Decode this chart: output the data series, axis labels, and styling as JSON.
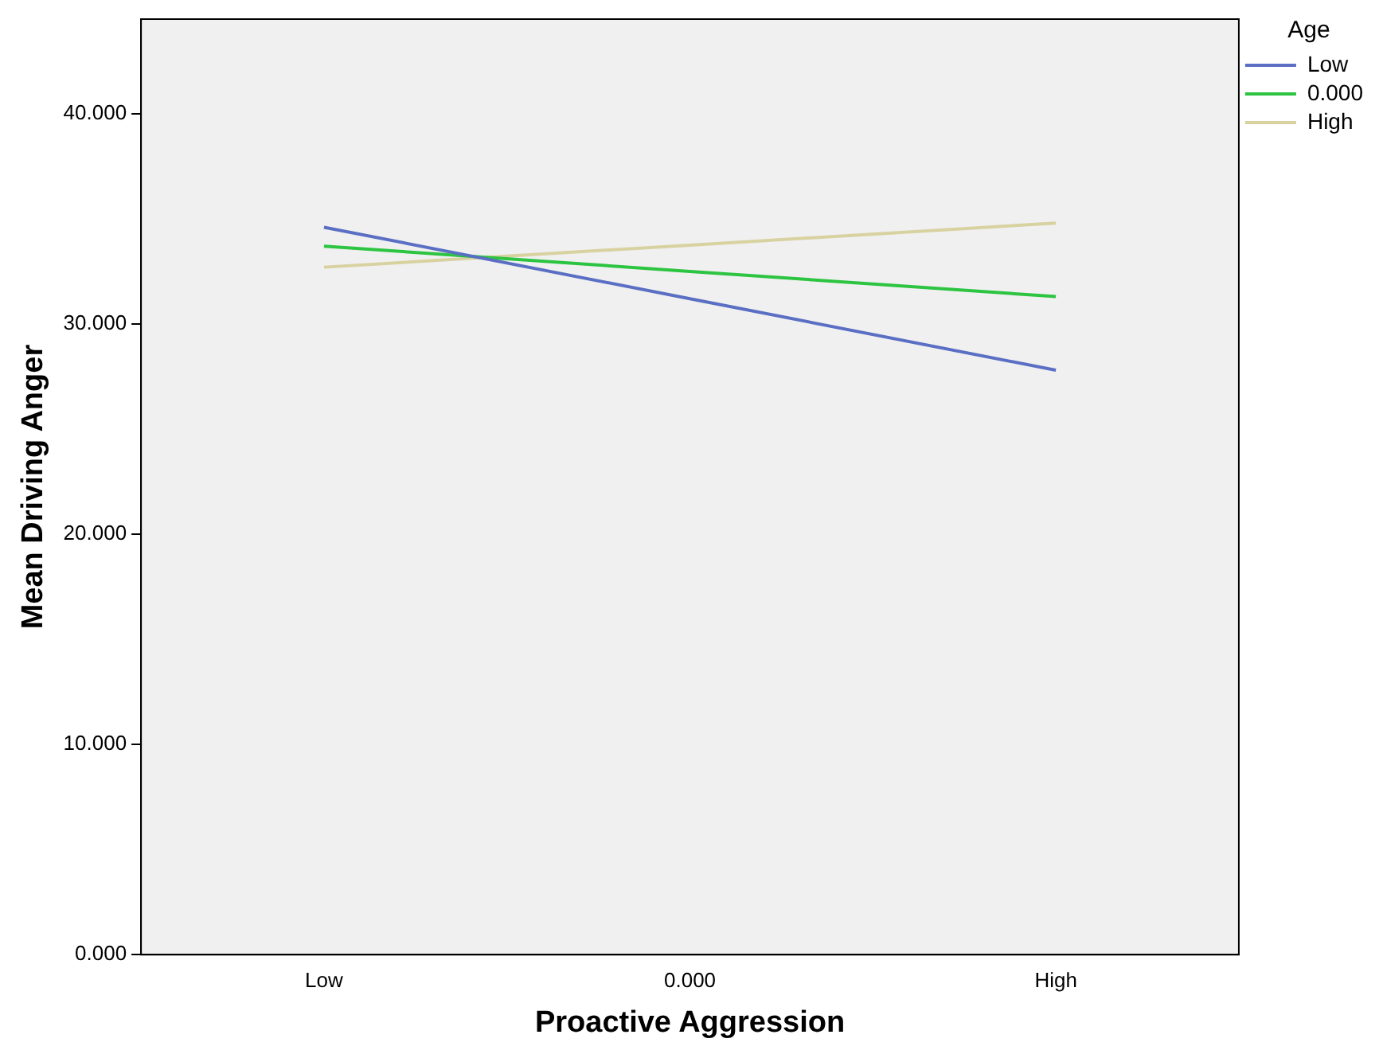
{
  "chart_data": {
    "type": "line",
    "xlabel": "Proactive Aggression",
    "ylabel": "Mean Driving Anger",
    "legend_title": "Age",
    "legend": "right",
    "categories": [
      "Low",
      "0.000",
      "High"
    ],
    "series": [
      {
        "name": "Low",
        "color": "#5a6fc4",
        "values": [
          34.6,
          31.2,
          27.8
        ]
      },
      {
        "name": "0.000",
        "color": "#2cc440",
        "values": [
          33.7,
          32.5,
          31.3
        ]
      },
      {
        "name": "High",
        "color": "#d8d2a0",
        "values": [
          32.7,
          33.75,
          34.8
        ]
      }
    ],
    "ylim": [
      0,
      44.5
    ],
    "yticks": [
      {
        "value": 0,
        "label": "0.000"
      },
      {
        "value": 10,
        "label": "10.000"
      },
      {
        "value": 20,
        "label": "20.000"
      },
      {
        "value": 30,
        "label": "30.000"
      },
      {
        "value": 40,
        "label": "40.000"
      }
    ],
    "grid": false,
    "marker": "none",
    "line_style": "solid"
  }
}
